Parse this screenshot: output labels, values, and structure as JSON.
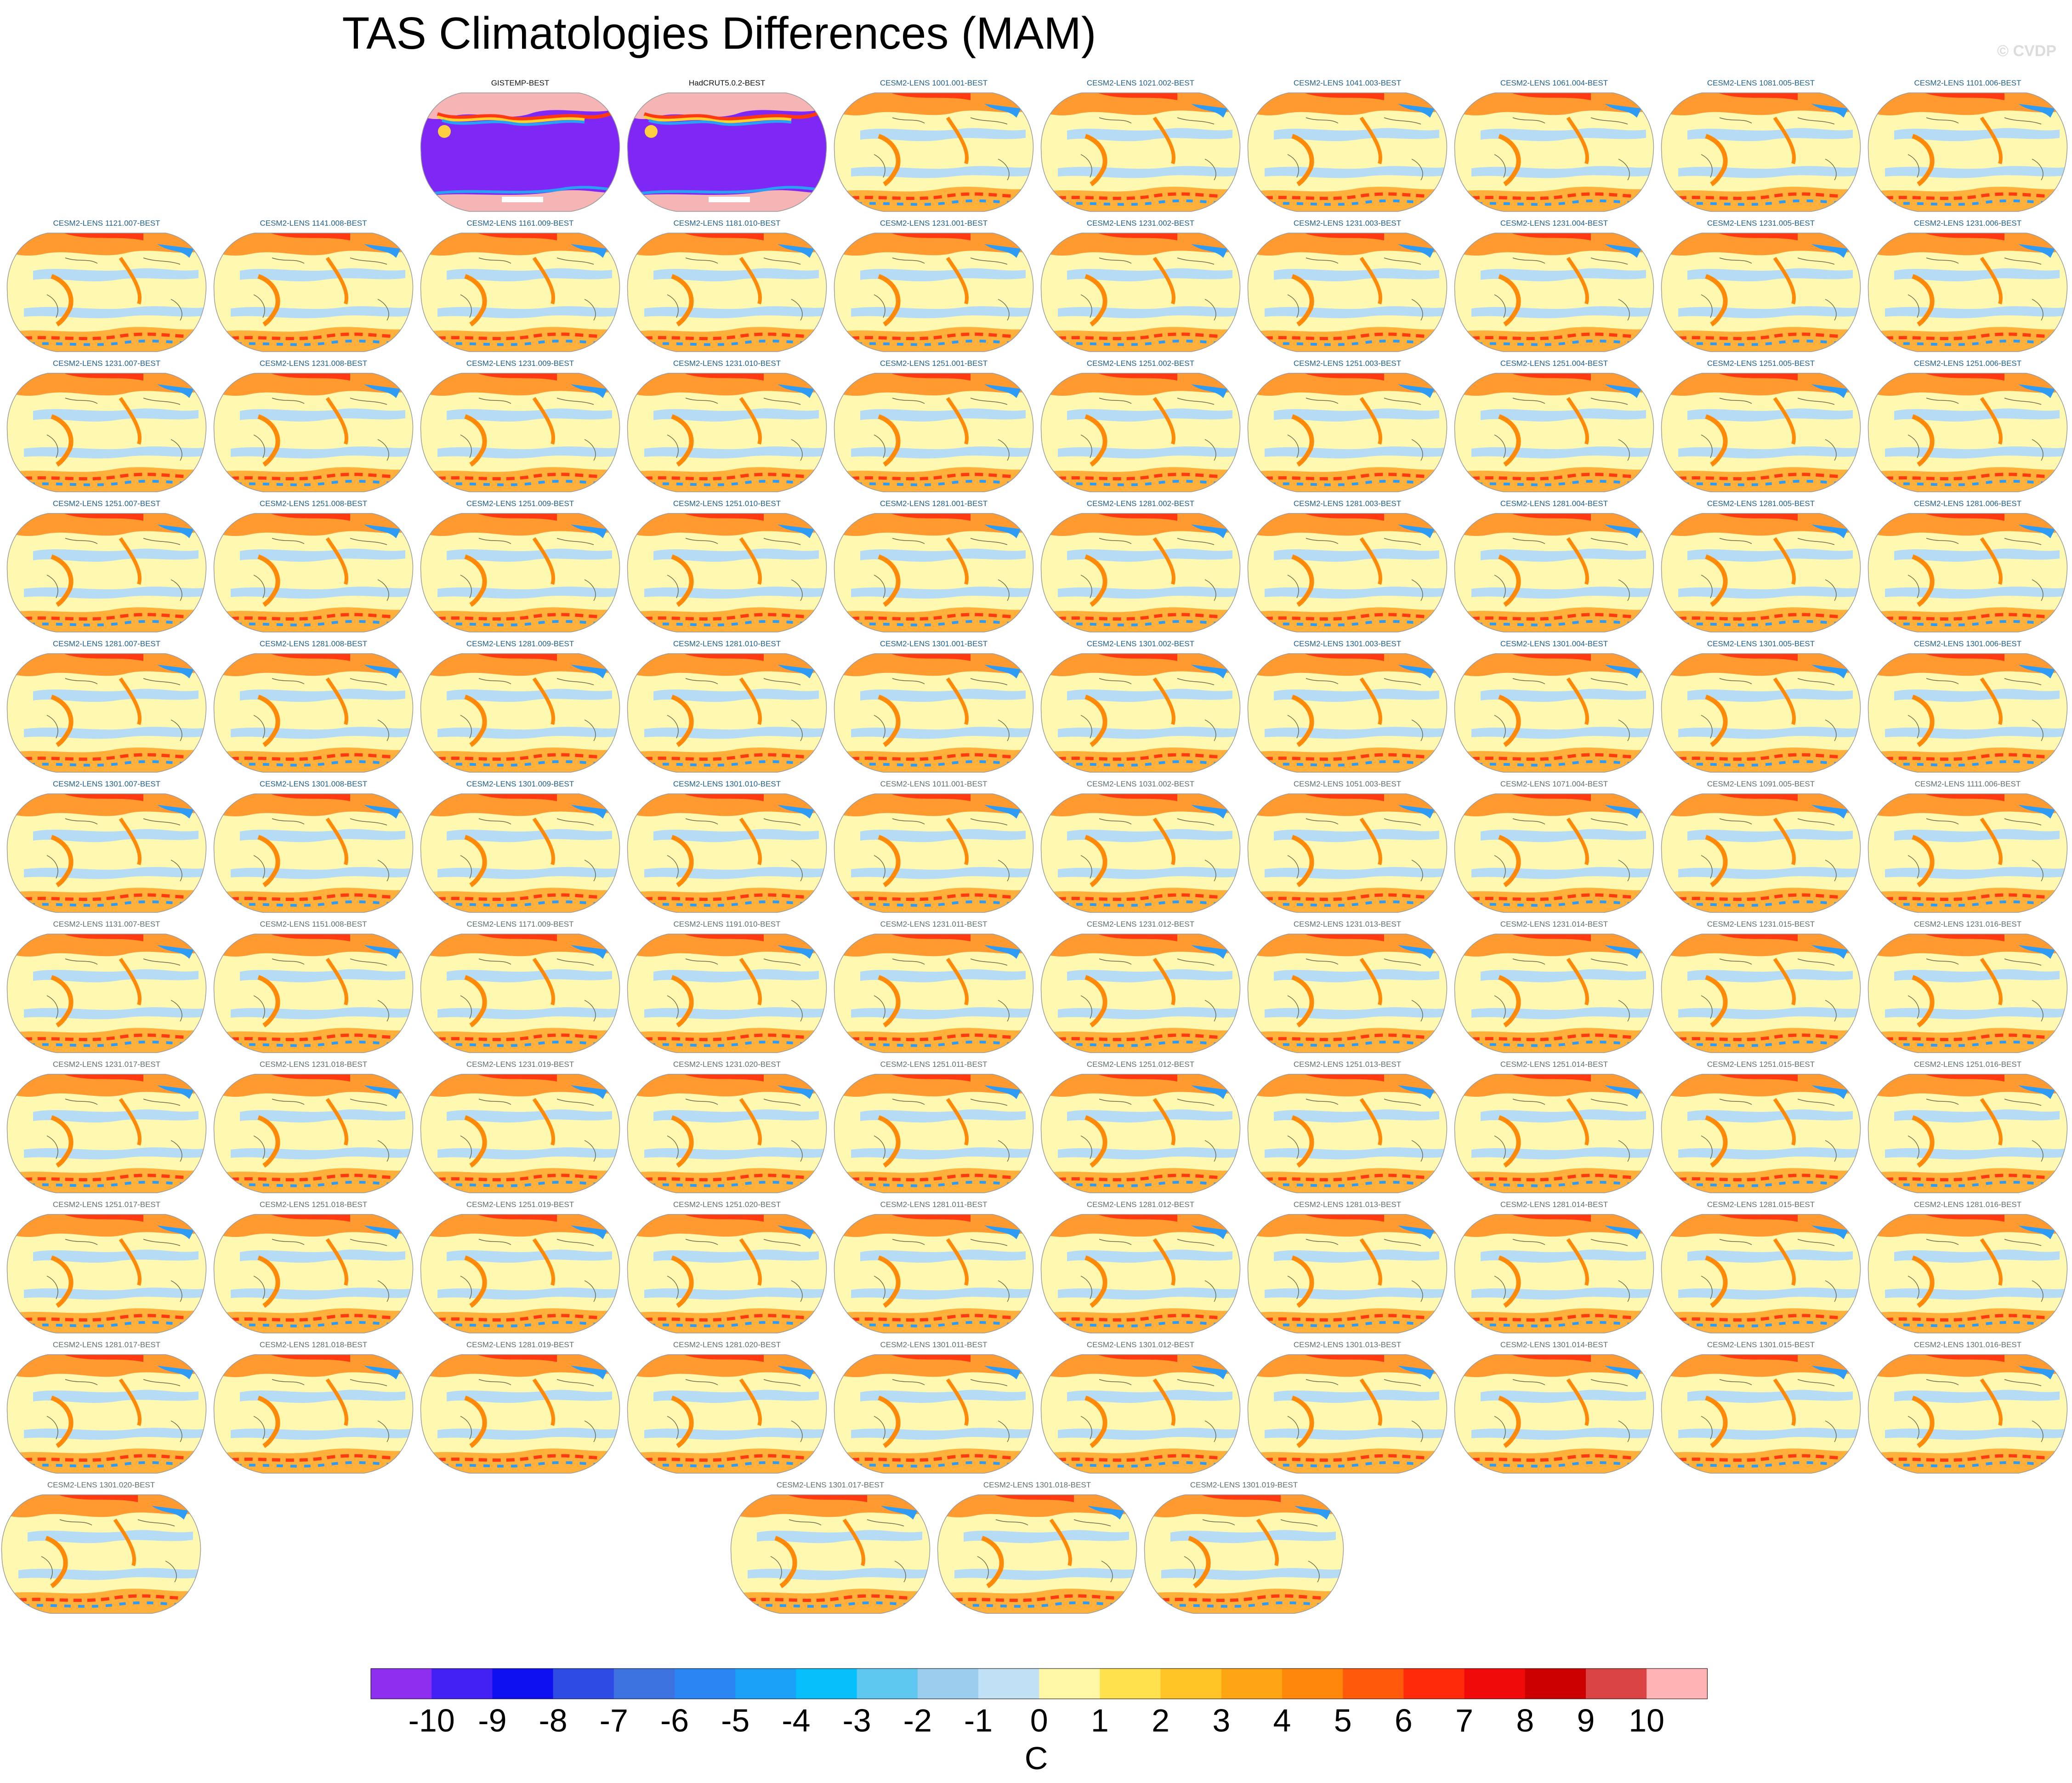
{
  "title": "TAS Climatologies Differences (MAM)",
  "watermark": "© CVDP",
  "colors": {
    "title_model": "#1f5f8b",
    "title_obs": "#111111",
    "title_model_alt": "#5f6f6f",
    "obs_bg": "#7f28f5",
    "ocean_base": "#fff8b0",
    "warm_band": "#ff9a30",
    "cool_band": "#b6dcf5"
  },
  "chart_data": {
    "type": "heatmap",
    "title": "TAS Climatologies Differences (MAM)",
    "projection": "robinson",
    "units": "C",
    "colorbar": {
      "labels": [
        "-10",
        "-9",
        "-8",
        "-7",
        "-6",
        "-5",
        "-4",
        "-3",
        "-2",
        "-1",
        "0",
        "1",
        "2",
        "3",
        "4",
        "5",
        "6",
        "7",
        "8",
        "9",
        "10"
      ],
      "colors": [
        "#8e2ff0",
        "#4321f5",
        "#0f10f0",
        "#2e4ce3",
        "#3d73e0",
        "#2b85f2",
        "#1ba1f7",
        "#06bffb",
        "#5ec8f0",
        "#9bcdee",
        "#bfe0f5",
        "#fff7a5",
        "#ffe14d",
        "#ffc326",
        "#ffa514",
        "#ff880a",
        "#ff5a0a",
        "#ff2a0a",
        "#f00a0a",
        "#cc0000",
        "#db4444",
        "#ffb3b3"
      ]
    },
    "panels": [
      {
        "label": "GISTEMP-BEST",
        "kind": "obs"
      },
      {
        "label": "HadCRUT5.0.2-BEST",
        "kind": "obs"
      },
      {
        "label": "CESM2-LENS 1001.001-BEST",
        "kind": "model"
      },
      {
        "label": "CESM2-LENS 1021.002-BEST",
        "kind": "model"
      },
      {
        "label": "CESM2-LENS 1041.003-BEST",
        "kind": "model"
      },
      {
        "label": "CESM2-LENS 1061.004-BEST",
        "kind": "model"
      },
      {
        "label": "CESM2-LENS 1081.005-BEST",
        "kind": "model"
      },
      {
        "label": "CESM2-LENS 1101.006-BEST",
        "kind": "model"
      },
      {
        "label": "CESM2-LENS 1121.007-BEST",
        "kind": "model"
      },
      {
        "label": "CESM2-LENS 1141.008-BEST",
        "kind": "model"
      },
      {
        "label": "CESM2-LENS 1161.009-BEST",
        "kind": "model"
      },
      {
        "label": "CESM2-LENS 1181.010-BEST",
        "kind": "model"
      },
      {
        "label": "CESM2-LENS 1231.001-BEST",
        "kind": "model"
      },
      {
        "label": "CESM2-LENS 1231.002-BEST",
        "kind": "model"
      },
      {
        "label": "CESM2-LENS 1231.003-BEST",
        "kind": "model"
      },
      {
        "label": "CESM2-LENS 1231.004-BEST",
        "kind": "model"
      },
      {
        "label": "CESM2-LENS 1231.005-BEST",
        "kind": "model"
      },
      {
        "label": "CESM2-LENS 1231.006-BEST",
        "kind": "model"
      },
      {
        "label": "CESM2-LENS 1231.007-BEST",
        "kind": "model"
      },
      {
        "label": "CESM2-LENS 1231.008-BEST",
        "kind": "model"
      },
      {
        "label": "CESM2-LENS 1231.009-BEST",
        "kind": "model"
      },
      {
        "label": "CESM2-LENS 1231.010-BEST",
        "kind": "model"
      },
      {
        "label": "CESM2-LENS 1251.001-BEST",
        "kind": "model"
      },
      {
        "label": "CESM2-LENS 1251.002-BEST",
        "kind": "model"
      },
      {
        "label": "CESM2-LENS 1251.003-BEST",
        "kind": "model"
      },
      {
        "label": "CESM2-LENS 1251.004-BEST",
        "kind": "model"
      },
      {
        "label": "CESM2-LENS 1251.005-BEST",
        "kind": "model"
      },
      {
        "label": "CESM2-LENS 1251.006-BEST",
        "kind": "model"
      },
      {
        "label": "CESM2-LENS 1251.007-BEST",
        "kind": "model"
      },
      {
        "label": "CESM2-LENS 1251.008-BEST",
        "kind": "model"
      },
      {
        "label": "CESM2-LENS 1251.009-BEST",
        "kind": "model"
      },
      {
        "label": "CESM2-LENS 1251.010-BEST",
        "kind": "model"
      },
      {
        "label": "CESM2-LENS 1281.001-BEST",
        "kind": "model"
      },
      {
        "label": "CESM2-LENS 1281.002-BEST",
        "kind": "model"
      },
      {
        "label": "CESM2-LENS 1281.003-BEST",
        "kind": "model"
      },
      {
        "label": "CESM2-LENS 1281.004-BEST",
        "kind": "model"
      },
      {
        "label": "CESM2-LENS 1281.005-BEST",
        "kind": "model"
      },
      {
        "label": "CESM2-LENS 1281.006-BEST",
        "kind": "model"
      },
      {
        "label": "CESM2-LENS 1281.007-BEST",
        "kind": "model"
      },
      {
        "label": "CESM2-LENS 1281.008-BEST",
        "kind": "model"
      },
      {
        "label": "CESM2-LENS 1281.009-BEST",
        "kind": "model"
      },
      {
        "label": "CESM2-LENS 1281.010-BEST",
        "kind": "model"
      },
      {
        "label": "CESM2-LENS 1301.001-BEST",
        "kind": "model"
      },
      {
        "label": "CESM2-LENS 1301.002-BEST",
        "kind": "model"
      },
      {
        "label": "CESM2-LENS 1301.003-BEST",
        "kind": "model"
      },
      {
        "label": "CESM2-LENS 1301.004-BEST",
        "kind": "model"
      },
      {
        "label": "CESM2-LENS 1301.005-BEST",
        "kind": "model"
      },
      {
        "label": "CESM2-LENS 1301.006-BEST",
        "kind": "model"
      },
      {
        "label": "CESM2-LENS 1301.007-BEST",
        "kind": "model"
      },
      {
        "label": "CESM2-LENS 1301.008-BEST",
        "kind": "model"
      },
      {
        "label": "CESM2-LENS 1301.009-BEST",
        "kind": "model"
      },
      {
        "label": "CESM2-LENS 1301.010-BEST",
        "kind": "model"
      },
      {
        "label": "CESM2-LENS 1011.001-BEST",
        "kind": "model-alt"
      },
      {
        "label": "CESM2-LENS 1031.002-BEST",
        "kind": "model-alt"
      },
      {
        "label": "CESM2-LENS 1051.003-BEST",
        "kind": "model-alt"
      },
      {
        "label": "CESM2-LENS 1071.004-BEST",
        "kind": "model-alt"
      },
      {
        "label": "CESM2-LENS 1091.005-BEST",
        "kind": "model-alt"
      },
      {
        "label": "CESM2-LENS 1111.006-BEST",
        "kind": "model-alt"
      },
      {
        "label": "CESM2-LENS 1131.007-BEST",
        "kind": "model-alt"
      },
      {
        "label": "CESM2-LENS 1151.008-BEST",
        "kind": "model-alt"
      },
      {
        "label": "CESM2-LENS 1171.009-BEST",
        "kind": "model-alt"
      },
      {
        "label": "CESM2-LENS 1191.010-BEST",
        "kind": "model-alt"
      },
      {
        "label": "CESM2-LENS 1231.011-BEST",
        "kind": "model-alt"
      },
      {
        "label": "CESM2-LENS 1231.012-BEST",
        "kind": "model-alt"
      },
      {
        "label": "CESM2-LENS 1231.013-BEST",
        "kind": "model-alt"
      },
      {
        "label": "CESM2-LENS 1231.014-BEST",
        "kind": "model-alt"
      },
      {
        "label": "CESM2-LENS 1231.015-BEST",
        "kind": "model-alt"
      },
      {
        "label": "CESM2-LENS 1231.016-BEST",
        "kind": "model-alt"
      },
      {
        "label": "CESM2-LENS 1231.017-BEST",
        "kind": "model-alt"
      },
      {
        "label": "CESM2-LENS 1231.018-BEST",
        "kind": "model-alt"
      },
      {
        "label": "CESM2-LENS 1231.019-BEST",
        "kind": "model-alt"
      },
      {
        "label": "CESM2-LENS 1231.020-BEST",
        "kind": "model-alt"
      },
      {
        "label": "CESM2-LENS 1251.011-BEST",
        "kind": "model-alt"
      },
      {
        "label": "CESM2-LENS 1251.012-BEST",
        "kind": "model-alt"
      },
      {
        "label": "CESM2-LENS 1251.013-BEST",
        "kind": "model-alt"
      },
      {
        "label": "CESM2-LENS 1251.014-BEST",
        "kind": "model-alt"
      },
      {
        "label": "CESM2-LENS 1251.015-BEST",
        "kind": "model-alt"
      },
      {
        "label": "CESM2-LENS 1251.016-BEST",
        "kind": "model-alt"
      },
      {
        "label": "CESM2-LENS 1251.017-BEST",
        "kind": "model-alt"
      },
      {
        "label": "CESM2-LENS 1251.018-BEST",
        "kind": "model-alt"
      },
      {
        "label": "CESM2-LENS 1251.019-BEST",
        "kind": "model-alt"
      },
      {
        "label": "CESM2-LENS 1251.020-BEST",
        "kind": "model-alt"
      },
      {
        "label": "CESM2-LENS 1281.011-BEST",
        "kind": "model-alt"
      },
      {
        "label": "CESM2-LENS 1281.012-BEST",
        "kind": "model-alt"
      },
      {
        "label": "CESM2-LENS 1281.013-BEST",
        "kind": "model-alt"
      },
      {
        "label": "CESM2-LENS 1281.014-BEST",
        "kind": "model-alt"
      },
      {
        "label": "CESM2-LENS 1281.015-BEST",
        "kind": "model-alt"
      },
      {
        "label": "CESM2-LENS 1281.016-BEST",
        "kind": "model-alt"
      },
      {
        "label": "CESM2-LENS 1281.017-BEST",
        "kind": "model-alt"
      },
      {
        "label": "CESM2-LENS 1281.018-BEST",
        "kind": "model-alt"
      },
      {
        "label": "CESM2-LENS 1281.019-BEST",
        "kind": "model-alt"
      },
      {
        "label": "CESM2-LENS 1281.020-BEST",
        "kind": "model-alt"
      },
      {
        "label": "CESM2-LENS 1301.011-BEST",
        "kind": "model-alt"
      },
      {
        "label": "CESM2-LENS 1301.012-BEST",
        "kind": "model-alt"
      },
      {
        "label": "CESM2-LENS 1301.013-BEST",
        "kind": "model-alt"
      },
      {
        "label": "CESM2-LENS 1301.014-BEST",
        "kind": "model-alt"
      },
      {
        "label": "CESM2-LENS 1301.015-BEST",
        "kind": "model-alt"
      },
      {
        "label": "CESM2-LENS 1301.016-BEST",
        "kind": "model-alt"
      },
      {
        "label": "CESM2-LENS 1301.017-BEST",
        "kind": "model-alt"
      },
      {
        "label": "CESM2-LENS 1301.018-BEST",
        "kind": "model-alt"
      },
      {
        "label": "CESM2-LENS 1301.019-BEST",
        "kind": "model-alt"
      },
      {
        "label": "CESM2-LENS 1301.020-BEST",
        "kind": "model-alt"
      }
    ]
  }
}
